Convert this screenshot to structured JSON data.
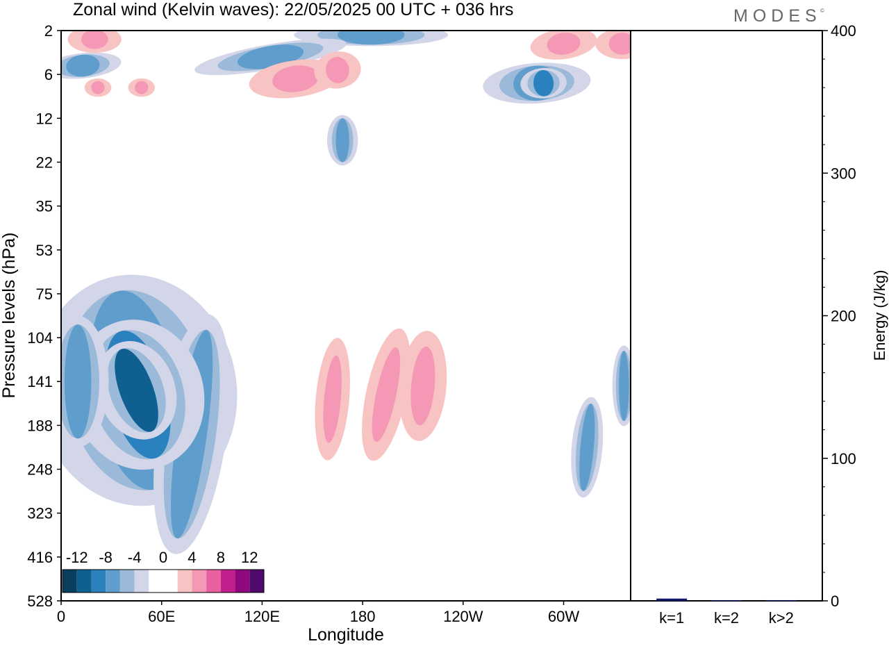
{
  "header": {
    "title": "Zonal wind (Kelvin waves):  22/05/2025  00 UTC  + 036 hrs",
    "brand": "MODES",
    "brand_mark": "©"
  },
  "colors": {
    "negative": [
      "#0b3d5c",
      "#0f5f91",
      "#2a81bd",
      "#5f9dcc",
      "#9bbad9",
      "#d3d6e8"
    ],
    "zero": "#ffffff",
    "positive": [
      "#f8c4c3",
      "#f598b6",
      "#e8609f",
      "#c21f8c",
      "#8e0a7c",
      "#4f0a6b"
    ],
    "bar": "#141a6b"
  },
  "chart_data": [
    {
      "type": "heatmap",
      "xlabel": "Longitude",
      "ylabel": "Pressure levels (hPa)",
      "x_ticks": [
        "0",
        "60E",
        "120E",
        "180",
        "120W",
        "60W"
      ],
      "x_tick_values": [
        0,
        60,
        120,
        180,
        240,
        300
      ],
      "xlim": [
        0,
        340
      ],
      "y_ticks": [
        "2",
        "6",
        "12",
        "22",
        "35",
        "53",
        "75",
        "104",
        "141",
        "188",
        "248",
        "323",
        "416",
        "528"
      ],
      "colorbar": {
        "labels": [
          "-12",
          "-8",
          "-4",
          "0",
          "4",
          "8",
          "12"
        ],
        "label_values": [
          -12,
          -8,
          -4,
          0,
          4,
          8,
          12
        ],
        "bins": [
          -14,
          -12,
          -10,
          -8,
          -6,
          -4,
          -2,
          2,
          4,
          6,
          8,
          10,
          12,
          14
        ]
      },
      "regions": [
        {
          "sign": "neg",
          "level": 3,
          "lon": 45,
          "lev": 8.2,
          "rx": 26,
          "ry": 2.3,
          "rot": -10
        },
        {
          "sign": "neg",
          "level": 3,
          "lon": 78,
          "lev": 9.2,
          "rx": 9,
          "ry": 2.4,
          "rot": 8
        },
        {
          "sign": "neg",
          "level": 2,
          "lon": 46,
          "lev": 8.3,
          "rx": 17,
          "ry": 1.5,
          "rot": -15
        },
        {
          "sign": "neg",
          "level": 1,
          "lon": 45,
          "lev": 8.2,
          "rx": 10,
          "ry": 1.0,
          "rot": -20
        },
        {
          "sign": "neg",
          "level": 3,
          "lon": 10,
          "lev": 8.0,
          "rx": 8,
          "ry": 1.3,
          "rot": 0
        },
        {
          "sign": "neg",
          "level": 3,
          "lon": 314,
          "lev": 9.5,
          "rx": 4,
          "ry": 1.0,
          "rot": 5
        },
        {
          "sign": "neg",
          "level": 3,
          "lon": 336,
          "lev": 8.1,
          "rx": 3,
          "ry": 0.8,
          "rot": 0
        },
        {
          "sign": "neg",
          "level": 3,
          "lon": 284,
          "lev": 1.2,
          "rx": 14,
          "ry": 0.4,
          "rot": -4
        },
        {
          "sign": "neg",
          "level": 2,
          "lon": 288,
          "lev": 1.2,
          "rx": 6,
          "ry": 0.3,
          "rot": -4
        },
        {
          "sign": "neg",
          "level": 3,
          "lon": 185,
          "lev": 0.1,
          "rx": 20,
          "ry": 0.22,
          "rot": 0
        },
        {
          "sign": "neg",
          "level": 3,
          "lon": 13,
          "lev": 0.8,
          "rx": 10,
          "ry": 0.25,
          "rot": -6
        },
        {
          "sign": "neg",
          "level": 3,
          "lon": 168,
          "lev": 2.5,
          "rx": 4,
          "ry": 0.5,
          "rot": 0
        },
        {
          "sign": "neg",
          "level": 3,
          "lon": 125,
          "lev": 0.6,
          "rx": 20,
          "ry": 0.25,
          "rot": -10
        },
        {
          "sign": "pos",
          "level": 1,
          "lon": 162,
          "lev": 8.4,
          "rx": 5,
          "ry": 1.0,
          "rot": 5
        },
        {
          "sign": "pos",
          "level": 1,
          "lon": 194,
          "lev": 8.3,
          "rx": 6,
          "ry": 1.1,
          "rot": 12
        },
        {
          "sign": "pos",
          "level": 1,
          "lon": 216,
          "lev": 8.1,
          "rx": 7,
          "ry": 0.9,
          "rot": 5
        },
        {
          "sign": "pos",
          "level": 1,
          "lon": 140,
          "lev": 1.1,
          "rx": 14,
          "ry": 0.3,
          "rot": -8
        },
        {
          "sign": "pos",
          "level": 1,
          "lon": 165,
          "lev": 0.9,
          "rx": 7,
          "ry": 0.3,
          "rot": -8
        },
        {
          "sign": "pos",
          "level": 1,
          "lon": 20,
          "lev": 0.2,
          "rx": 8,
          "ry": 0.22,
          "rot": 0
        },
        {
          "sign": "pos",
          "level": 1,
          "lon": 335,
          "lev": 0.3,
          "rx": 8,
          "ry": 0.25,
          "rot": 0
        },
        {
          "sign": "pos",
          "level": 1,
          "lon": 300,
          "lev": 0.3,
          "rx": 10,
          "ry": 0.25,
          "rot": -8
        },
        {
          "sign": "pos",
          "level": 1,
          "lon": 22,
          "lev": 1.3,
          "rx": 4,
          "ry": 0.15,
          "rot": 0
        },
        {
          "sign": "pos",
          "level": 1,
          "lon": 48,
          "lev": 1.3,
          "rx": 4,
          "ry": 0.15,
          "rot": 0
        }
      ]
    },
    {
      "type": "bar",
      "categories": [
        "k=1",
        "k=2",
        "k>2"
      ],
      "values": [
        1.6,
        0.4,
        0.5
      ],
      "ylabel": "Energy (J/kg)",
      "ylim": [
        0,
        400
      ],
      "y_ticks": [
        0,
        100,
        200,
        300,
        400
      ]
    }
  ]
}
